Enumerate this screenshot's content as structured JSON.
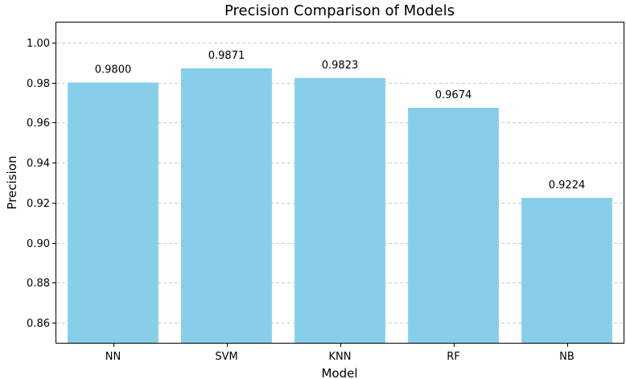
{
  "chart_data": {
    "type": "bar",
    "title": "Precision Comparison of Models",
    "xlabel": "Model",
    "ylabel": "Precision",
    "categories": [
      "NN",
      "SVM",
      "KNN",
      "RF",
      "NB"
    ],
    "values": [
      0.98,
      0.9871,
      0.9823,
      0.9674,
      0.9224
    ],
    "value_labels": [
      "0.9800",
      "0.9871",
      "0.9823",
      "0.9674",
      "0.9224"
    ],
    "yticks": [
      "0.86",
      "0.88",
      "0.90",
      "0.92",
      "0.94",
      "0.96",
      "0.98",
      "1.00"
    ],
    "ylim": [
      0.85,
      1.01
    ],
    "grid": "y-dashed",
    "bar_color": "#87ceeb"
  }
}
